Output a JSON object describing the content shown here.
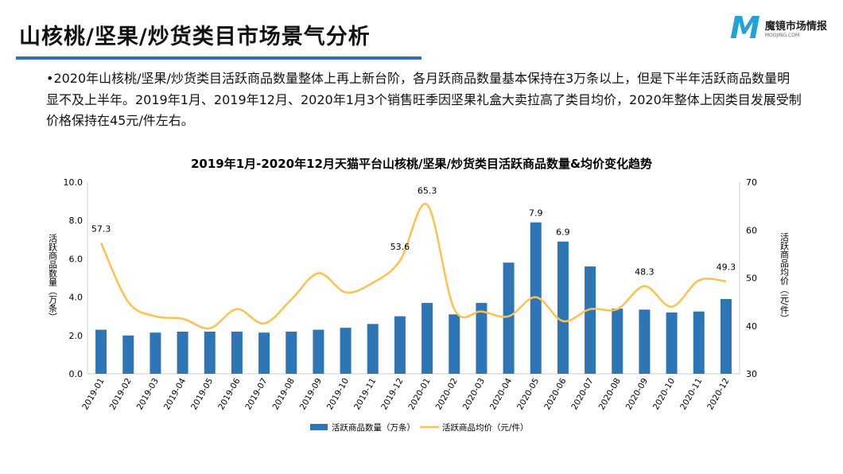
{
  "header": {
    "title": "山核桃/坚果/炒货类目市场景气分析",
    "logo_text": "魔镜市场情报",
    "logo_sub": "MOOJING.COM",
    "logo_mark": "M"
  },
  "summary": "•2020年山核桃/坚果/炒货类目活跃商品数量整体上再上新台阶，各月跃商品数量基本保持在3万条以上，但是下半年活跃商品数量明显不及上半年。2019年1月、2019年12月、2020年1月3个销售旺季因坚果礼盒大卖拉高了类目均价，2020年整体上因类目发展受制价格保持在45元/件左右。",
  "chart_data": {
    "type": "bar+line",
    "title": "2019年1月-2020年12月天猫平台山核桃/坚果/炒货类目活跃商品数量&均价变化趋势",
    "categories": [
      "2019-01",
      "2019-02",
      "2019-03",
      "2019-04",
      "2019-05",
      "2019-06",
      "2019-07",
      "2019-08",
      "2019-09",
      "2019-10",
      "2019-11",
      "2019-12",
      "2020-01",
      "2020-02",
      "2020-03",
      "2020-04",
      "2020-05",
      "2020-06",
      "2020-07",
      "2020-08",
      "2020-09",
      "2020-10",
      "2020-11",
      "2020-12"
    ],
    "series": [
      {
        "name": "活跃商品数量（万条）",
        "type": "bar",
        "axis": "left",
        "color": "#2e75b6",
        "values": [
          2.3,
          2.0,
          2.15,
          2.2,
          2.2,
          2.2,
          2.15,
          2.2,
          2.3,
          2.4,
          2.6,
          3.0,
          3.7,
          3.1,
          3.7,
          5.8,
          7.9,
          6.9,
          5.6,
          3.4,
          3.35,
          3.2,
          3.25,
          3.9
        ],
        "labels": {
          "16": "7.9",
          "17": "6.9"
        }
      },
      {
        "name": "活跃商品均价（元/件）",
        "type": "line",
        "axis": "right",
        "color": "#ffc04d",
        "values": [
          57.3,
          45,
          42,
          41.5,
          39.5,
          43.5,
          40.5,
          45.5,
          51,
          47,
          49,
          53.6,
          65.3,
          43.5,
          43,
          42,
          46,
          41,
          43.5,
          43.5,
          48.3,
          44,
          49.5,
          49.3
        ],
        "labels": {
          "0": "57.3",
          "11": "53.6",
          "12": "65.3",
          "20": "48.3",
          "23": "49.3"
        }
      }
    ],
    "ylabel": "活跃商品数量（万条）",
    "y2label": "活跃商品均价（元/件）",
    "ylim": [
      0,
      10
    ],
    "yticks": [
      "0.0",
      "2.0",
      "4.0",
      "6.0",
      "8.0",
      "10.0"
    ],
    "y2lim": [
      30,
      70
    ],
    "y2ticks": [
      "30",
      "40",
      "50",
      "60",
      "70"
    ],
    "legend": "bottom"
  }
}
